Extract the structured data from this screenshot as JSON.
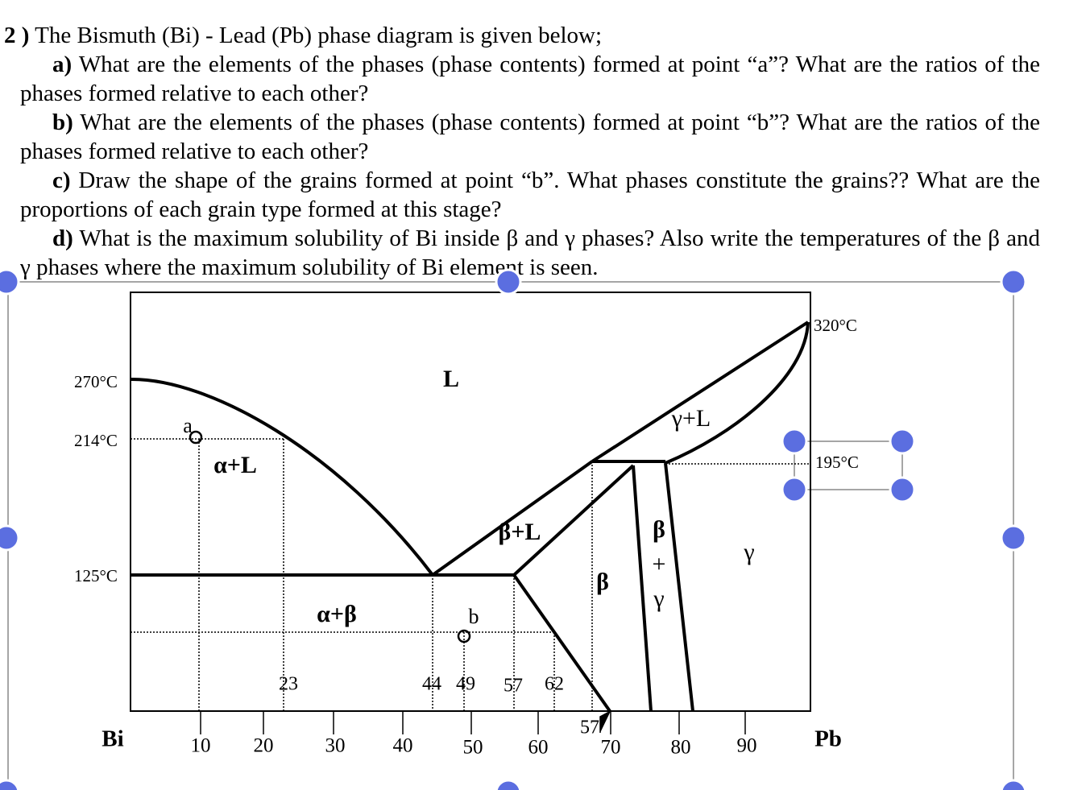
{
  "question": {
    "number": "2 )",
    "intro": "The Bismuth (Bi) - Lead (Pb) phase diagram is given below;",
    "parts": [
      {
        "label": "a)",
        "text": "What are the elements of the phases (phase contents) formed at point “a”? What are the ratios of the phases formed relative to each other?"
      },
      {
        "label": "b)",
        "text": "What are the elements of the phases (phase contents) formed at point “b”? What are the ratios of the phases formed relative to each other?"
      },
      {
        "label": "c)",
        "text": "Draw the shape of the grains formed at point “b”. What phases constitute the grains?? What are the proportions of each grain type formed at this stage?"
      },
      {
        "label": "d)",
        "text": "What is the maximum solubility of Bi inside β and γ phases? Also write the temperatures of the β and γ phases where the maximum solubility of Bi element is seen."
      }
    ]
  },
  "diagram": {
    "temperature_labels": [
      "270°C",
      "214°C",
      "125°C",
      "320°C",
      "195°C"
    ],
    "element_labels": [
      "Bi",
      "Pb"
    ],
    "axis_labels": [
      "10",
      "20",
      "30",
      "40",
      "50",
      "60",
      "70",
      "80",
      "90"
    ],
    "composition_labels": [
      "23",
      "44",
      "49",
      "57",
      "62",
      "57"
    ],
    "region_labels": [
      "L",
      "γ+L",
      "α+L",
      "β+L",
      "β",
      "+",
      "γ",
      "β",
      "γ",
      "α+β"
    ],
    "point_labels": [
      "a",
      "b"
    ]
  }
}
